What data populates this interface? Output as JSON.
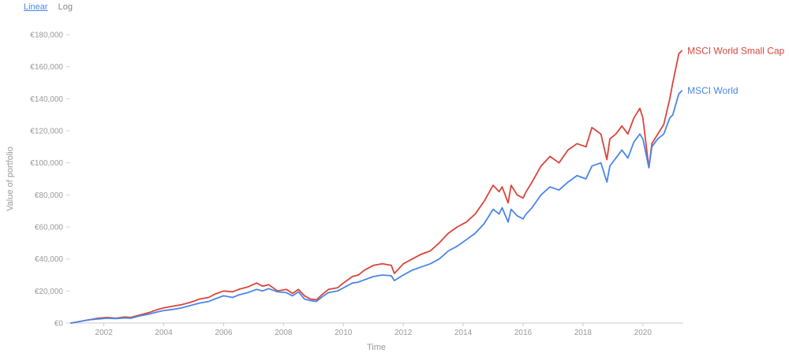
{
  "controls": {
    "linear_label": "Linear",
    "log_label": "Log"
  },
  "colors": {
    "msci_world": "#4a86e8",
    "msci_world_small_cap": "#d9453b",
    "axis": "#cccccc",
    "text": "#999999"
  },
  "chart_data": {
    "type": "line",
    "xlabel": "Time",
    "ylabel": "Value of portfolio",
    "xlim": [
      2000.85,
      2021.35
    ],
    "ylim": [
      0,
      180000
    ],
    "y_ticks": [
      0,
      20000,
      40000,
      60000,
      80000,
      100000,
      120000,
      140000,
      160000,
      180000
    ],
    "y_tick_labels": [
      "€0",
      "€20,000",
      "€40,000",
      "€60,000",
      "€80,000",
      "€100,000",
      "€120,000",
      "€140,000",
      "€160,000",
      "€180,000"
    ],
    "x_ticks": [
      2002,
      2004,
      2006,
      2008,
      2010,
      2012,
      2014,
      2016,
      2018,
      2020
    ],
    "x_tick_labels": [
      "2002",
      "2004",
      "2006",
      "2008",
      "2010",
      "2012",
      "2014",
      "2016",
      "2018",
      "2020"
    ],
    "grid": false,
    "legend": "end-of-line labels",
    "series": [
      {
        "name": "MSCI World Small Cap",
        "color": "#d9453b",
        "x": [
          2000.9,
          2001.2,
          2001.5,
          2001.8,
          2002.1,
          2002.4,
          2002.7,
          2002.9,
          2003.2,
          2003.5,
          2003.8,
          2004.0,
          2004.3,
          2004.6,
          2004.9,
          2005.2,
          2005.5,
          2005.7,
          2006.0,
          2006.3,
          2006.5,
          2006.8,
          2007.1,
          2007.3,
          2007.5,
          2007.8,
          2008.1,
          2008.3,
          2008.5,
          2008.7,
          2008.9,
          2009.1,
          2009.3,
          2009.5,
          2009.8,
          2010.0,
          2010.3,
          2010.5,
          2010.7,
          2011.0,
          2011.3,
          2011.6,
          2011.7,
          2012.0,
          2012.3,
          2012.6,
          2012.9,
          2013.2,
          2013.5,
          2013.8,
          2014.1,
          2014.4,
          2014.7,
          2015.0,
          2015.2,
          2015.3,
          2015.5,
          2015.6,
          2015.8,
          2016.0,
          2016.1,
          2016.3,
          2016.6,
          2016.9,
          2017.2,
          2017.5,
          2017.8,
          2018.1,
          2018.3,
          2018.6,
          2018.8,
          2018.9,
          2019.1,
          2019.3,
          2019.5,
          2019.7,
          2019.9,
          2020.0,
          2020.2,
          2020.3,
          2020.5,
          2020.7,
          2020.9,
          2021.0,
          2021.2,
          2021.3
        ],
        "y": [
          0,
          1000,
          2000,
          3000,
          3500,
          3000,
          3800,
          3500,
          5000,
          6500,
          8500,
          9500,
          10500,
          11500,
          13000,
          15000,
          16000,
          18000,
          20000,
          19500,
          21000,
          22500,
          25000,
          23000,
          24000,
          20000,
          21000,
          18500,
          21000,
          17000,
          15000,
          14500,
          18000,
          21000,
          22000,
          25000,
          29000,
          30000,
          33000,
          36000,
          37000,
          36000,
          31000,
          37000,
          40000,
          43000,
          45000,
          50000,
          56000,
          60000,
          63000,
          68000,
          76000,
          86000,
          82000,
          85000,
          75000,
          86000,
          80000,
          78000,
          82000,
          88000,
          98000,
          104000,
          100000,
          108000,
          112000,
          110000,
          122000,
          118000,
          102000,
          115000,
          118000,
          123000,
          118000,
          128000,
          134000,
          128000,
          97000,
          112000,
          118000,
          124000,
          140000,
          150000,
          168000,
          170000
        ]
      },
      {
        "name": "MSCI World",
        "color": "#4a86e8",
        "x": [
          2000.9,
          2001.2,
          2001.5,
          2001.8,
          2002.1,
          2002.4,
          2002.7,
          2002.9,
          2003.2,
          2003.5,
          2003.8,
          2004.0,
          2004.3,
          2004.6,
          2004.9,
          2005.2,
          2005.5,
          2005.7,
          2006.0,
          2006.3,
          2006.5,
          2006.8,
          2007.1,
          2007.3,
          2007.5,
          2007.8,
          2008.1,
          2008.3,
          2008.5,
          2008.7,
          2008.9,
          2009.1,
          2009.3,
          2009.5,
          2009.8,
          2010.0,
          2010.3,
          2010.5,
          2010.7,
          2011.0,
          2011.3,
          2011.6,
          2011.7,
          2012.0,
          2012.3,
          2012.6,
          2012.9,
          2013.2,
          2013.5,
          2013.8,
          2014.1,
          2014.4,
          2014.7,
          2015.0,
          2015.2,
          2015.3,
          2015.5,
          2015.6,
          2015.8,
          2016.0,
          2016.1,
          2016.3,
          2016.6,
          2016.9,
          2017.2,
          2017.5,
          2017.8,
          2018.1,
          2018.3,
          2018.6,
          2018.8,
          2018.9,
          2019.1,
          2019.3,
          2019.5,
          2019.7,
          2019.9,
          2020.0,
          2020.2,
          2020.3,
          2020.5,
          2020.7,
          2020.9,
          2021.0,
          2021.2,
          2021.3
        ],
        "y": [
          0,
          1000,
          2000,
          2500,
          3000,
          2800,
          3200,
          3000,
          4500,
          5500,
          7000,
          7800,
          8500,
          9500,
          11000,
          12500,
          13500,
          15000,
          17000,
          16000,
          17500,
          19000,
          21000,
          20000,
          21500,
          19500,
          19000,
          17000,
          19500,
          15000,
          14000,
          13500,
          16500,
          19000,
          20000,
          22000,
          25000,
          25500,
          27000,
          29000,
          30000,
          29500,
          26500,
          30000,
          33000,
          35000,
          37000,
          40000,
          45000,
          48000,
          52000,
          56000,
          62000,
          71000,
          68000,
          72000,
          63000,
          71000,
          67000,
          65000,
          68000,
          72000,
          80000,
          85000,
          83000,
          88000,
          92000,
          90000,
          98000,
          100000,
          88000,
          98000,
          103000,
          108000,
          103000,
          113000,
          118000,
          115000,
          97000,
          110000,
          115000,
          118000,
          128000,
          130000,
          143000,
          145000
        ]
      }
    ]
  }
}
